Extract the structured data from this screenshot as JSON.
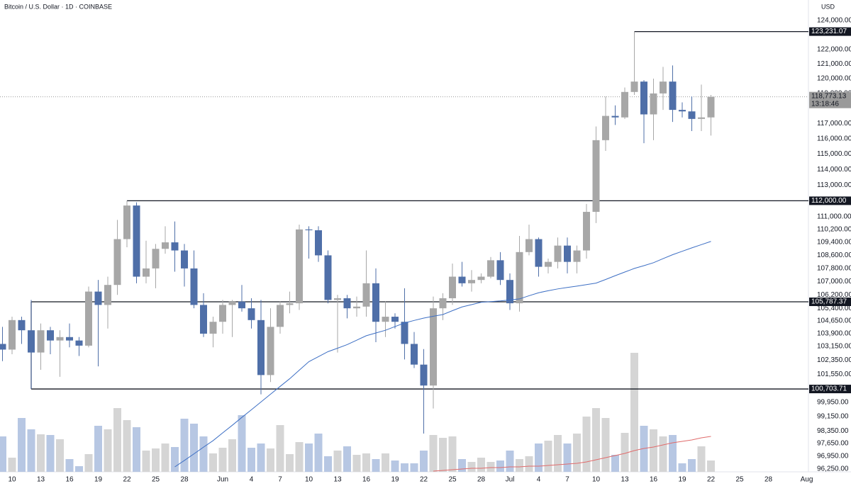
{
  "chart_data": {
    "type": "candlestick",
    "title": "Bitcoin / U.S. Dollar · 1D · COINBASE",
    "currency": "USD",
    "categories": [
      null,
      "10",
      null,
      null,
      "13",
      null,
      null,
      "16",
      null,
      null,
      "19",
      null,
      null,
      "22",
      null,
      null,
      "25",
      null,
      null,
      "28",
      null,
      null,
      null,
      "Jun",
      null,
      null,
      "4",
      null,
      null,
      "7",
      null,
      null,
      "10",
      null,
      null,
      "13",
      null,
      null,
      "16",
      null,
      null,
      "19",
      null,
      null,
      "22",
      null,
      null,
      "25",
      null,
      null,
      "28",
      null,
      null,
      "Jul",
      null,
      null,
      "4",
      null,
      null,
      "7",
      null,
      null,
      "10",
      null,
      null,
      "13",
      null,
      null,
      "16",
      null,
      null,
      "19",
      null,
      null,
      "22",
      null,
      null,
      "25",
      null,
      null,
      "28",
      null,
      null,
      null,
      "Aug"
    ],
    "open": [
      103300,
      102970,
      104700,
      104100,
      102800,
      104100,
      103500,
      103700,
      103500,
      103200,
      106400,
      105600,
      106800,
      109600,
      111700,
      107300,
      107800,
      109000,
      109400,
      108900,
      107800,
      105600,
      103900,
      104600,
      105600,
      105800,
      105400,
      104700,
      101500,
      104300,
      105600,
      105700,
      110200,
      110150,
      108600,
      105900,
      106000,
      105400,
      105500,
      106900,
      104600,
      104900,
      104600,
      103300,
      102100,
      100900,
      105400,
      106000,
      107300,
      106900,
      107100,
      107300,
      108300,
      107100,
      105700,
      108800,
      109600,
      107900,
      108200,
      109200,
      108200,
      108900,
      111300,
      115900,
      117500,
      117400,
      119100,
      119800,
      117600,
      119000,
      119800,
      117900,
      117800,
      117300,
      117400,
      null,
      null,
      null,
      null,
      null,
      null,
      null,
      null,
      null,
      null
    ],
    "high": [
      104300,
      104900,
      104900,
      105900,
      104500,
      104300,
      104100,
      104500,
      103700,
      106700,
      107100,
      107300,
      110800,
      112000,
      111900,
      109500,
      109300,
      110400,
      110700,
      109300,
      108900,
      106300,
      104900,
      105900,
      105900,
      106800,
      106000,
      105900,
      105400,
      105800,
      106400,
      110500,
      110400,
      110400,
      108900,
      106200,
      106200,
      106100,
      108900,
      107800,
      105800,
      105100,
      106600,
      104000,
      103000,
      106100,
      106300,
      108100,
      108200,
      107700,
      107500,
      108500,
      108800,
      107500,
      109800,
      110500,
      109700,
      108400,
      109700,
      109700,
      109200,
      111800,
      116800,
      118800,
      118200,
      119400,
      123231.07,
      119900,
      120000,
      120800,
      120900,
      118400,
      118800,
      119600,
      118900,
      null,
      null,
      null,
      null,
      null,
      null,
      null,
      null,
      null,
      null
    ],
    "low": [
      102300,
      102700,
      103300,
      100700,
      101800,
      102700,
      101400,
      103100,
      102600,
      103100,
      102000,
      104200,
      106200,
      109100,
      106900,
      106900,
      106600,
      108700,
      107600,
      106700,
      105400,
      103700,
      103100,
      103900,
      103700,
      105200,
      104200,
      100400,
      101100,
      103900,
      105100,
      105300,
      108400,
      108200,
      105700,
      102800,
      104800,
      104900,
      104900,
      103400,
      103700,
      104200,
      102400,
      101900,
      98200,
      99600,
      104700,
      105600,
      106700,
      106400,
      106900,
      107200,
      106800,
      105300,
      105200,
      108600,
      107300,
      107500,
      107800,
      107500,
      107500,
      108400,
      110600,
      115200,
      116900,
      117300,
      118900,
      115700,
      115900,
      117900,
      117100,
      117400,
      116500,
      116500,
      116200,
      null,
      null,
      null,
      null,
      null,
      null,
      null,
      null,
      null,
      null
    ],
    "close": [
      102970,
      104700,
      104100,
      102800,
      104100,
      103500,
      103700,
      103500,
      103200,
      106400,
      105600,
      106800,
      109600,
      111700,
      107300,
      107800,
      109000,
      109400,
      108900,
      107800,
      105600,
      103900,
      104600,
      105600,
      105800,
      105400,
      104700,
      101500,
      104300,
      105600,
      105700,
      110200,
      110150,
      108600,
      105900,
      106000,
      105400,
      105500,
      106900,
      104600,
      104900,
      104600,
      103300,
      102100,
      100900,
      105400,
      106000,
      107300,
      106900,
      107100,
      107300,
      108300,
      107100,
      105700,
      108800,
      109600,
      107900,
      108200,
      109200,
      108200,
      108900,
      111300,
      115900,
      117500,
      117400,
      119100,
      119800,
      117600,
      119000,
      119800,
      117900,
      117800,
      117300,
      117400,
      118773.13,
      null,
      null,
      null,
      null,
      null,
      null,
      null,
      null,
      null,
      null
    ],
    "volume": [
      50,
      20,
      76,
      60,
      53,
      52,
      46,
      18,
      8,
      25,
      65,
      60,
      90,
      73,
      63,
      30,
      33,
      40,
      35,
      75,
      68,
      50,
      26,
      34,
      46,
      80,
      34,
      40,
      33,
      66,
      25,
      42,
      40,
      54,
      22,
      30,
      36,
      24,
      26,
      18,
      26,
      16,
      12,
      12,
      30,
      52,
      48,
      50,
      18,
      14,
      20,
      14,
      16,
      30,
      18,
      22,
      40,
      44,
      52,
      40,
      54,
      78,
      90,
      76,
      24,
      55,
      168,
      65,
      60,
      50,
      52,
      12,
      18,
      36,
      16,
      null,
      null,
      null,
      null,
      null,
      null,
      null,
      null,
      null,
      null
    ],
    "ma": [
      null,
      null,
      null,
      null,
      null,
      null,
      null,
      null,
      null,
      null,
      null,
      null,
      null,
      null,
      null,
      null,
      null,
      null,
      96370,
      96720,
      97080,
      97450,
      97810,
      98240,
      98660,
      99100,
      99530,
      99970,
      100410,
      100850,
      101290,
      101780,
      102270,
      102560,
      102850,
      103050,
      103260,
      103520,
      103780,
      103940,
      104100,
      104320,
      104530,
      104680,
      104820,
      104930,
      105030,
      105260,
      105480,
      105620,
      105760,
      105800,
      105840,
      105900,
      105960,
      106150,
      106330,
      106450,
      106560,
      106650,
      106730,
      106820,
      106910,
      107130,
      107360,
      107580,
      107800,
      107970,
      108150,
      108400,
      108640,
      108850,
      109060,
      109260,
      109460,
      null,
      null,
      null,
      null,
      null,
      null,
      null,
      null,
      null,
      null
    ],
    "volume_ma": [
      null,
      null,
      null,
      null,
      null,
      null,
      null,
      null,
      null,
      null,
      null,
      null,
      null,
      null,
      null,
      null,
      null,
      null,
      null,
      null,
      null,
      null,
      null,
      null,
      null,
      null,
      null,
      null,
      null,
      null,
      null,
      null,
      null,
      null,
      null,
      null,
      null,
      null,
      null,
      null,
      null,
      null,
      null,
      null,
      null,
      1,
      2,
      3,
      4,
      5,
      5,
      6,
      6,
      7,
      7,
      8,
      8,
      9,
      10,
      11,
      12,
      14,
      17,
      20,
      23,
      26,
      30,
      33,
      35,
      38,
      41,
      43,
      45,
      48,
      50,
      null,
      null,
      null,
      null,
      null,
      null,
      null,
      null,
      null,
      null
    ],
    "ylim": [
      96100,
      125450
    ],
    "log_scale": true,
    "volume_ylim": [
      0,
      200
    ],
    "grid": false,
    "yticks": [
      {
        "value": 124000,
        "label": "124,000.00"
      },
      {
        "value": 122000,
        "label": "122,000.00"
      },
      {
        "value": 121000,
        "label": "121,000.00"
      },
      {
        "value": 120000,
        "label": "120,000.00"
      },
      {
        "value": 119000,
        "label": "119,000.00"
      },
      {
        "value": 117000,
        "label": "117,000.00"
      },
      {
        "value": 116000,
        "label": "116,000.00"
      },
      {
        "value": 115000,
        "label": "115,000.00"
      },
      {
        "value": 114000,
        "label": "114,000.00"
      },
      {
        "value": 113000,
        "label": "113,000.00"
      },
      {
        "value": 111000,
        "label": "111,000.00"
      },
      {
        "value": 110200,
        "label": "110,200.00"
      },
      {
        "value": 109400,
        "label": "109,400.00"
      },
      {
        "value": 108600,
        "label": "108,600.00"
      },
      {
        "value": 107800,
        "label": "107,800.00"
      },
      {
        "value": 107000,
        "label": "107,000.00"
      },
      {
        "value": 106200,
        "label": "106,200.00"
      },
      {
        "value": 105400,
        "label": "105,400.00"
      },
      {
        "value": 104650,
        "label": "104,650.00"
      },
      {
        "value": 103900,
        "label": "103,900.00"
      },
      {
        "value": 103150,
        "label": "103,150.00"
      },
      {
        "value": 102350,
        "label": "102,350.00"
      },
      {
        "value": 101550,
        "label": "101,550.00"
      },
      {
        "value": 99950,
        "label": "99,950.00"
      },
      {
        "value": 99150,
        "label": "99,150.00"
      },
      {
        "value": 98350,
        "label": "98,350.00"
      },
      {
        "value": 97650,
        "label": "97,650.00"
      },
      {
        "value": 96950,
        "label": "96,950.00"
      },
      {
        "value": 96250,
        "label": "96,250.00"
      }
    ],
    "levels": [
      {
        "value": 123231.07,
        "label": "123,231.07"
      },
      {
        "value": 112000,
        "label": "112,000.00"
      },
      {
        "value": 105787.37,
        "label": "105,787.37"
      },
      {
        "value": 100703.71,
        "label": "100,703.71"
      }
    ],
    "last_price": {
      "value": 118773.13,
      "label": "118,773.13",
      "countdown": "13:18:46"
    },
    "colors": {
      "up": "#a7a7a7",
      "down": "#4f6fa8",
      "volume_up": "#d5d5d5",
      "volume_down": "#b7c7e3",
      "ma": "#3d6fc4",
      "volume_ma": "#e06b6b",
      "level": "#131722",
      "last": "#9a9a9a"
    }
  }
}
